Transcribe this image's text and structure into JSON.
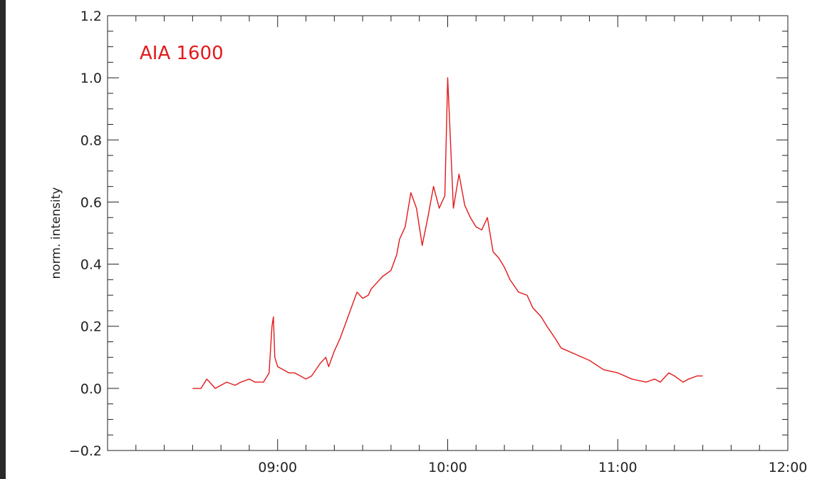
{
  "chart_data": {
    "type": "line",
    "title": "",
    "xlabel": "",
    "ylabel": "norm. intensity",
    "xlim": [
      "08:00",
      "12:00"
    ],
    "ylim": [
      -0.2,
      1.2
    ],
    "grid": false,
    "x_ticks": [
      "09:00",
      "10:00",
      "11:00",
      "12:00"
    ],
    "y_ticks": [
      "−0.2",
      "0.0",
      "0.2",
      "0.4",
      "0.6",
      "0.8",
      "1.0",
      "1.2"
    ],
    "series": [
      {
        "name": "AIA 1600",
        "color": "#e31a1c",
        "x": [
          "08:30",
          "08:33",
          "08:35",
          "08:36",
          "08:38",
          "08:40",
          "08:42",
          "08:45",
          "08:47",
          "08:50",
          "08:52",
          "08:55",
          "08:57",
          "08:58",
          "08:58:30",
          "08:59",
          "09:00",
          "09:02",
          "09:04",
          "09:06",
          "09:08",
          "09:10",
          "09:12",
          "09:15",
          "09:17",
          "09:18",
          "09:20",
          "09:22",
          "09:24",
          "09:26",
          "09:28",
          "09:30",
          "09:32",
          "09:33",
          "09:35",
          "09:37",
          "09:40",
          "09:42",
          "09:43",
          "09:45",
          "09:47",
          "09:49",
          "09:51",
          "09:53",
          "09:55",
          "09:57",
          "09:59",
          "10:00",
          "10:02",
          "10:04",
          "10:06",
          "10:08",
          "10:10",
          "10:12",
          "10:14",
          "10:16",
          "10:18",
          "10:20",
          "10:22",
          "10:25",
          "10:28",
          "10:30",
          "10:33",
          "10:35",
          "10:38",
          "10:40",
          "10:45",
          "10:50",
          "10:55",
          "11:00",
          "11:05",
          "11:10",
          "11:13",
          "11:15",
          "11:18",
          "11:20",
          "11:23",
          "11:25",
          "11:28",
          "11:30"
        ],
        "values": [
          0.0,
          0.0,
          0.03,
          0.02,
          0.0,
          0.01,
          0.02,
          0.01,
          0.02,
          0.03,
          0.02,
          0.02,
          0.05,
          0.2,
          0.23,
          0.1,
          0.07,
          0.06,
          0.05,
          0.05,
          0.04,
          0.03,
          0.04,
          0.08,
          0.1,
          0.07,
          0.12,
          0.16,
          0.21,
          0.26,
          0.31,
          0.29,
          0.3,
          0.32,
          0.34,
          0.36,
          0.38,
          0.43,
          0.48,
          0.52,
          0.63,
          0.58,
          0.46,
          0.55,
          0.65,
          0.58,
          0.62,
          1.0,
          0.58,
          0.69,
          0.59,
          0.55,
          0.52,
          0.51,
          0.55,
          0.44,
          0.42,
          0.39,
          0.35,
          0.31,
          0.3,
          0.26,
          0.23,
          0.2,
          0.16,
          0.13,
          0.11,
          0.09,
          0.06,
          0.05,
          0.03,
          0.02,
          0.03,
          0.02,
          0.05,
          0.04,
          0.02,
          0.03,
          0.04,
          0.04
        ]
      }
    ]
  }
}
